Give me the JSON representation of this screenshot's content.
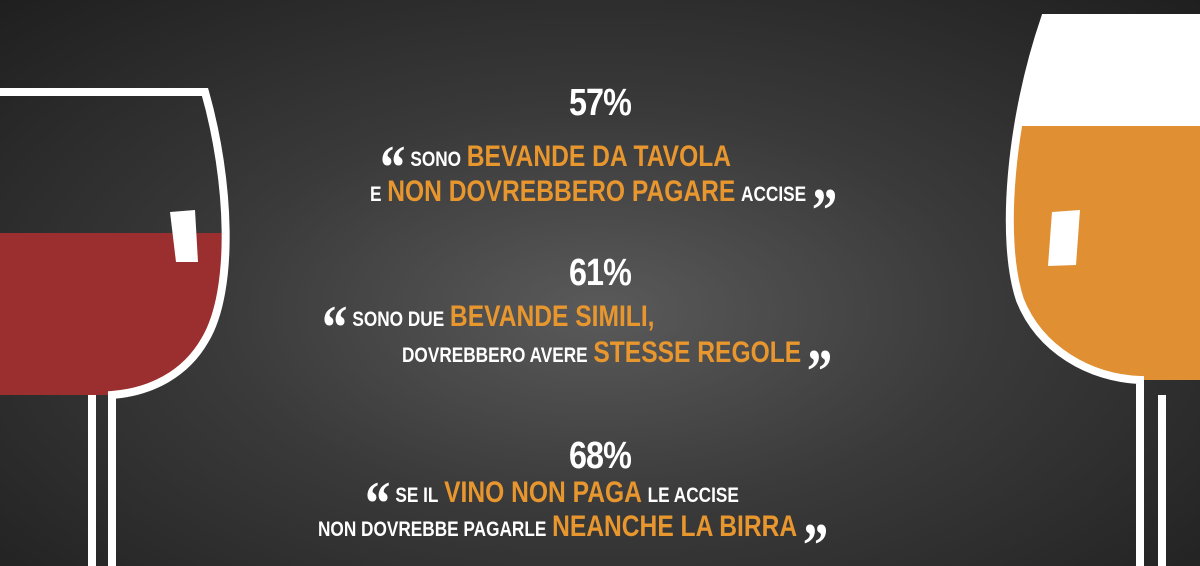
{
  "open_quote": "“",
  "close_quote": "”",
  "items": [
    {
      "percent": "57%",
      "line1": [
        {
          "text": "SONO",
          "highlight": false
        },
        {
          "text": "BEVANDE DA TAVOLA",
          "highlight": true
        }
      ],
      "line2": [
        {
          "text": "E",
          "highlight": false
        },
        {
          "text": "NON DOVREBBERO PAGARE",
          "highlight": true
        },
        {
          "text": "ACCISE",
          "highlight": false
        }
      ]
    },
    {
      "percent": "61%",
      "line1": [
        {
          "text": "SONO DUE",
          "highlight": false
        },
        {
          "text": "BEVANDE SIMILI,",
          "highlight": true
        }
      ],
      "line2": [
        {
          "text": "DOVREBBERO AVERE",
          "highlight": false
        },
        {
          "text": "STESSE REGOLE",
          "highlight": true
        }
      ]
    },
    {
      "percent": "68%",
      "line1": [
        {
          "text": "SE IL",
          "highlight": false
        },
        {
          "text": "VINO NON PAGA",
          "highlight": true
        },
        {
          "text": "LE ACCISE",
          "highlight": false
        }
      ],
      "line2": [
        {
          "text": "NON DOVREBBE PAGARLE",
          "highlight": false
        },
        {
          "text": "NEANCHE LA BIRRA",
          "highlight": true
        }
      ]
    }
  ]
}
